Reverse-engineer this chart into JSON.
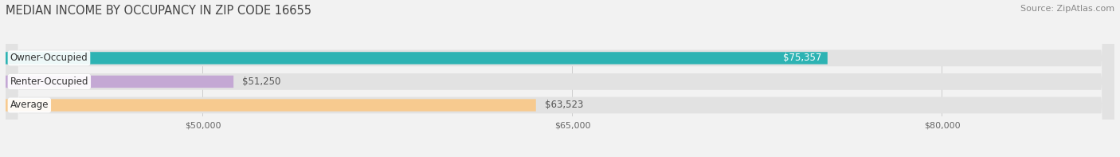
{
  "title": "MEDIAN INCOME BY OCCUPANCY IN ZIP CODE 16655",
  "source": "Source: ZipAtlas.com",
  "categories": [
    "Owner-Occupied",
    "Renter-Occupied",
    "Average"
  ],
  "values": [
    75357,
    51250,
    63523
  ],
  "bar_colors": [
    "#2db3b3",
    "#c4a8d4",
    "#f7ca8f"
  ],
  "bar_labels": [
    "$75,357",
    "$51,250",
    "$63,523"
  ],
  "label_inside": [
    true,
    false,
    false
  ],
  "label_color_inside": "#ffffff",
  "label_color_outside": "#555555",
  "xlim_min": 42000,
  "xlim_max": 87000,
  "xticks": [
    50000,
    65000,
    80000
  ],
  "xtick_labels": [
    "$50,000",
    "$65,000",
    "$80,000"
  ],
  "background_color": "#f2f2f2",
  "bar_track_color": "#e2e2e2",
  "title_fontsize": 10.5,
  "source_fontsize": 8,
  "label_fontsize": 8.5,
  "tick_fontsize": 8
}
